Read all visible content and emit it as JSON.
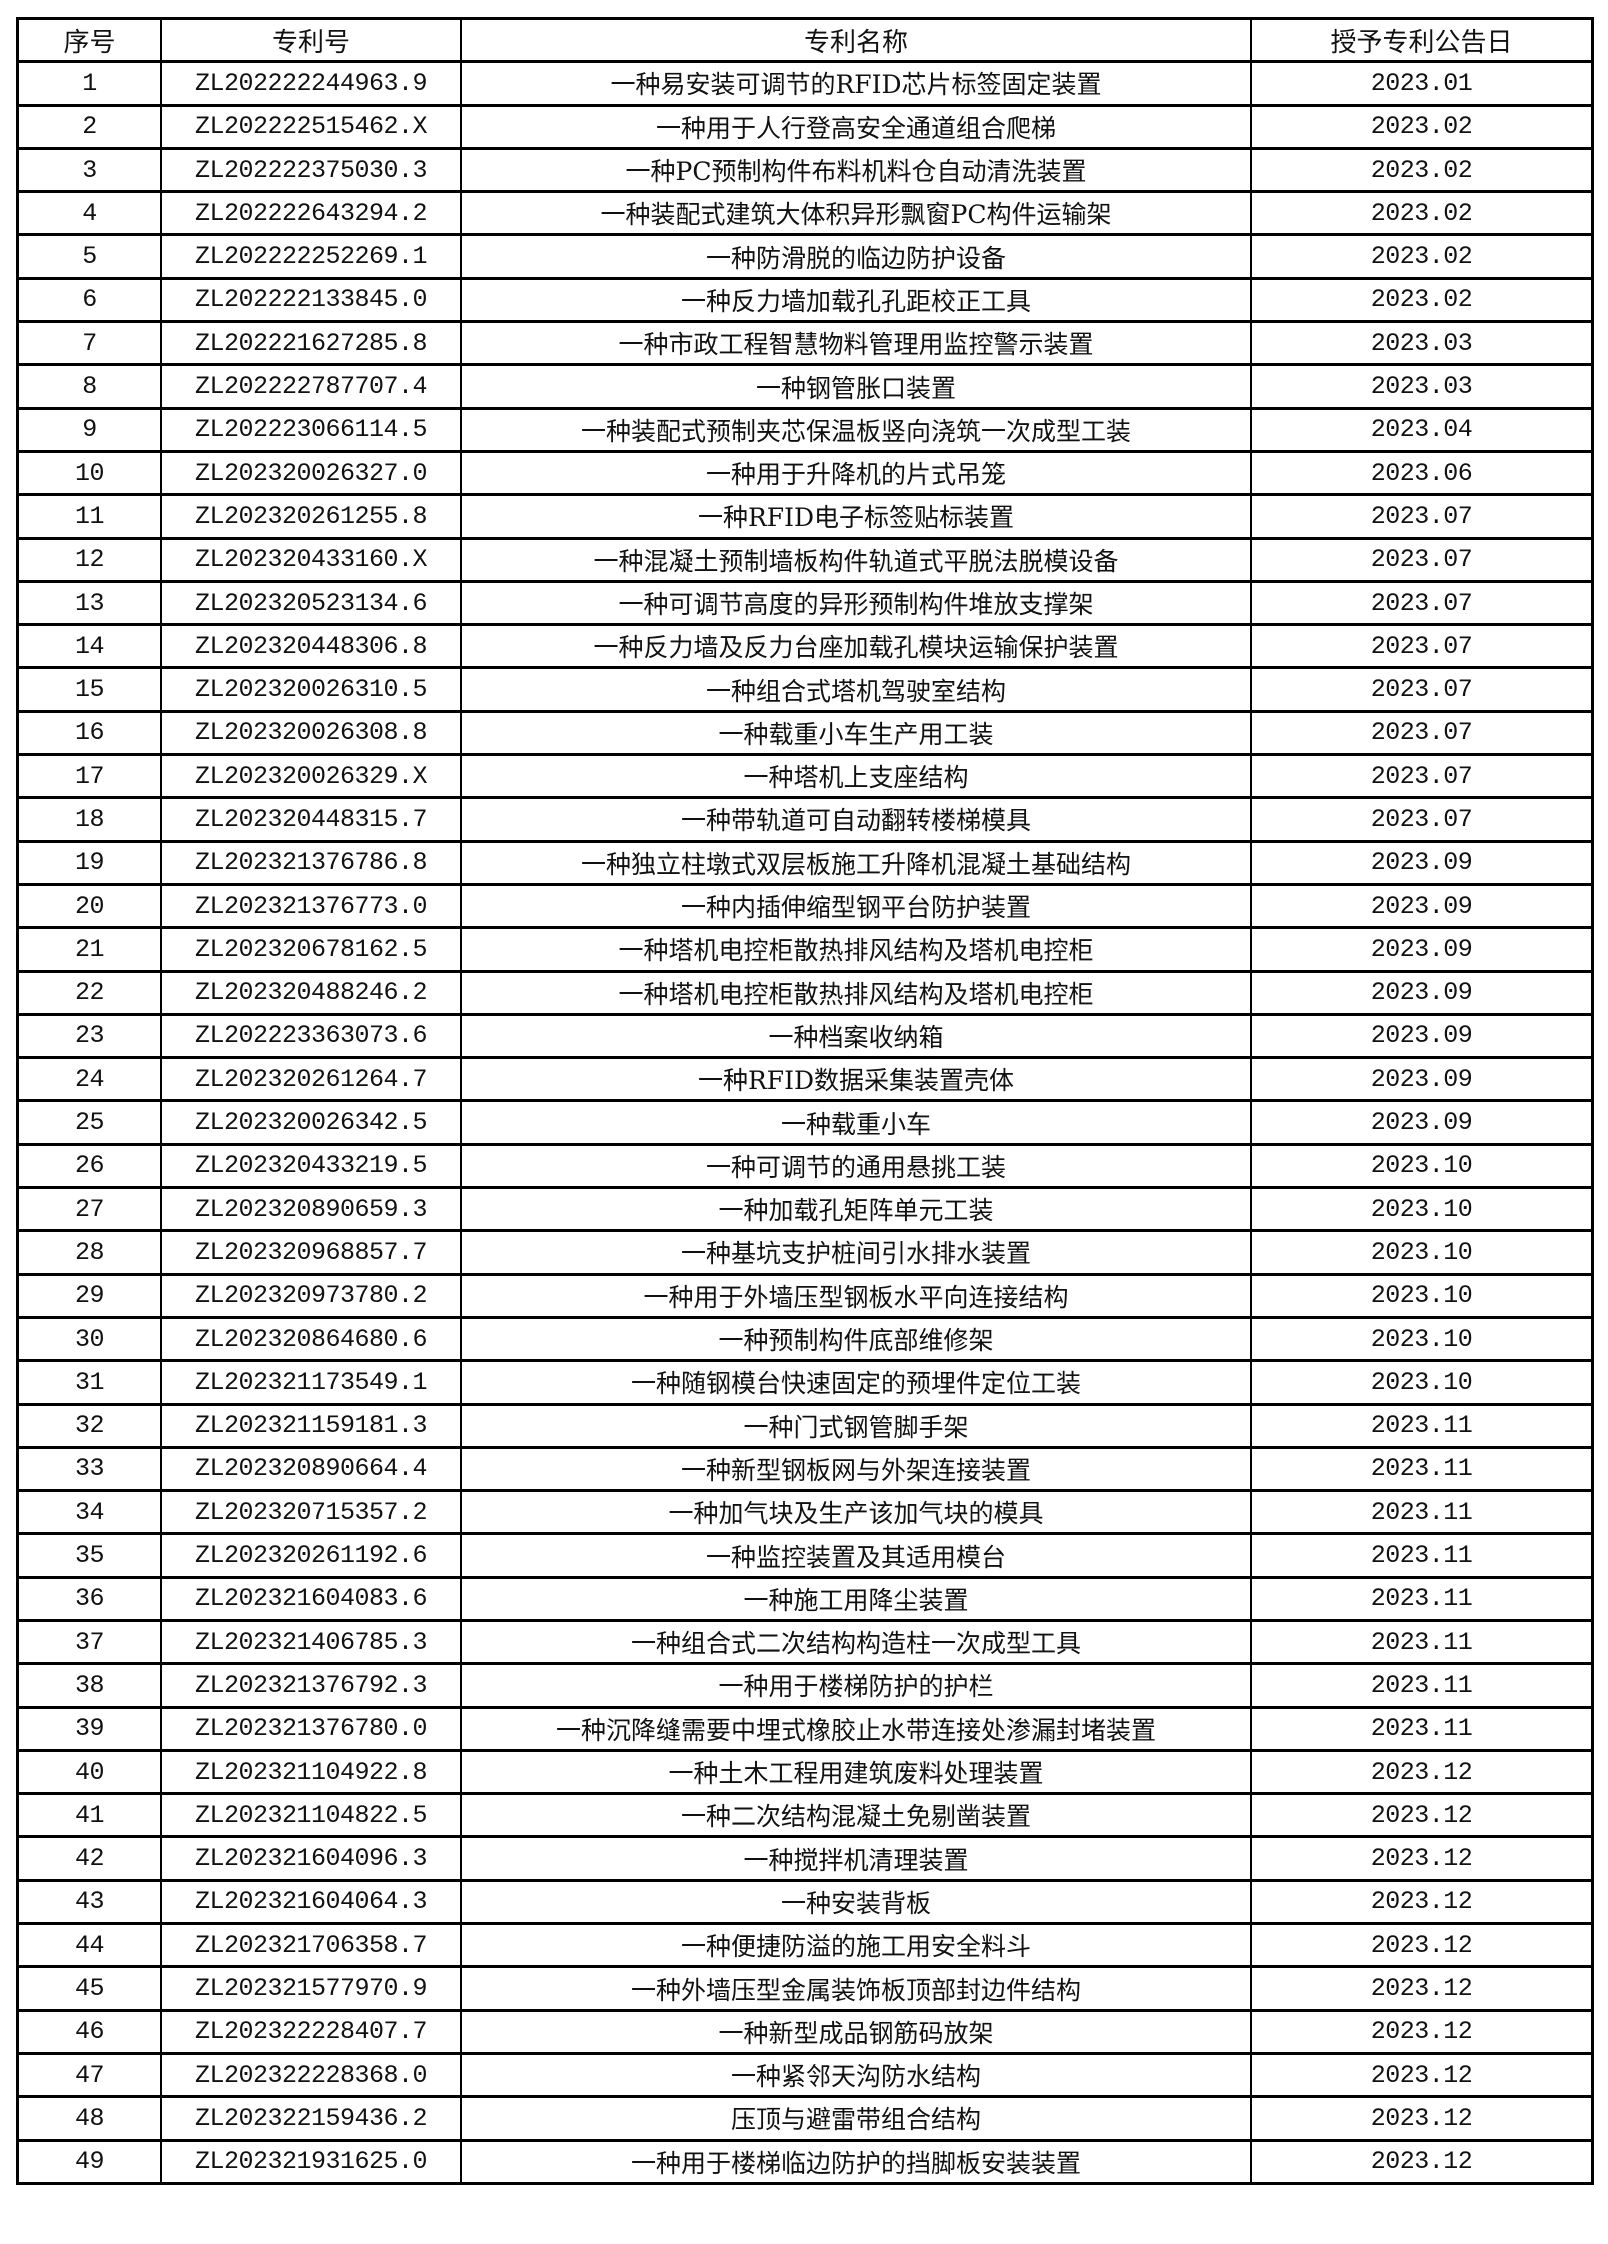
{
  "headers": [
    "序号",
    "专利号",
    "专利名称",
    "授予专利公告日"
  ],
  "rows": [
    [
      "1",
      "ZL202222244963.9",
      "一种易安装可调节的RFID芯片标签固定装置",
      "2023.01"
    ],
    [
      "2",
      "ZL202222515462.X",
      "一种用于人行登高安全通道组合爬梯",
      "2023.02"
    ],
    [
      "3",
      "ZL202222375030.3",
      "一种PC预制构件布料机料仓自动清洗装置",
      "2023.02"
    ],
    [
      "4",
      "ZL202222643294.2",
      "一种装配式建筑大体积异形飘窗PC构件运输架",
      "2023.02"
    ],
    [
      "5",
      "ZL202222252269.1",
      "一种防滑脱的临边防护设备",
      "2023.02"
    ],
    [
      "6",
      "ZL202222133845.0",
      "一种反力墙加载孔孔距校正工具",
      "2023.02"
    ],
    [
      "7",
      "ZL202221627285.8",
      "一种市政工程智慧物料管理用监控警示装置",
      "2023.03"
    ],
    [
      "8",
      "ZL202222787707.4",
      "一种钢管胀口装置",
      "2023.03"
    ],
    [
      "9",
      "ZL202223066114.5",
      "一种装配式预制夹芯保温板竖向浇筑一次成型工装",
      "2023.04"
    ],
    [
      "10",
      "ZL202320026327.0",
      "一种用于升降机的片式吊笼",
      "2023.06"
    ],
    [
      "11",
      "ZL202320261255.8",
      "一种RFID电子标签贴标装置",
      "2023.07"
    ],
    [
      "12",
      "ZL202320433160.X",
      "一种混凝土预制墙板构件轨道式平脱法脱模设备",
      "2023.07"
    ],
    [
      "13",
      "ZL202320523134.6",
      "一种可调节高度的异形预制构件堆放支撑架",
      "2023.07"
    ],
    [
      "14",
      "ZL202320448306.8",
      "一种反力墙及反力台座加载孔模块运输保护装置",
      "2023.07"
    ],
    [
      "15",
      "ZL202320026310.5",
      "一种组合式塔机驾驶室结构",
      "2023.07"
    ],
    [
      "16",
      "ZL202320026308.8",
      "一种载重小车生产用工装",
      "2023.07"
    ],
    [
      "17",
      "ZL202320026329.X",
      "一种塔机上支座结构",
      "2023.07"
    ],
    [
      "18",
      "ZL202320448315.7",
      "一种带轨道可自动翻转楼梯模具",
      "2023.07"
    ],
    [
      "19",
      "ZL202321376786.8",
      "一种独立柱墩式双层板施工升降机混凝土基础结构",
      "2023.09"
    ],
    [
      "20",
      "ZL202321376773.0",
      "一种内插伸缩型钢平台防护装置",
      "2023.09"
    ],
    [
      "21",
      "ZL202320678162.5",
      "一种塔机电控柜散热排风结构及塔机电控柜",
      "2023.09"
    ],
    [
      "22",
      "ZL202320488246.2",
      "一种塔机电控柜散热排风结构及塔机电控柜",
      "2023.09"
    ],
    [
      "23",
      "ZL202223363073.6",
      "一种档案收纳箱",
      "2023.09"
    ],
    [
      "24",
      "ZL202320261264.7",
      "一种RFID数据采集装置壳体",
      "2023.09"
    ],
    [
      "25",
      "ZL202320026342.5",
      "一种载重小车",
      "2023.09"
    ],
    [
      "26",
      "ZL202320433219.5",
      "一种可调节的通用悬挑工装",
      "2023.10"
    ],
    [
      "27",
      "ZL202320890659.3",
      "一种加载孔矩阵单元工装",
      "2023.10"
    ],
    [
      "28",
      "ZL202320968857.7",
      "一种基坑支护桩间引水排水装置",
      "2023.10"
    ],
    [
      "29",
      "ZL202320973780.2",
      "一种用于外墙压型钢板水平向连接结构",
      "2023.10"
    ],
    [
      "30",
      "ZL202320864680.6",
      "一种预制构件底部维修架",
      "2023.10"
    ],
    [
      "31",
      "ZL202321173549.1",
      "一种随钢模台快速固定的预埋件定位工装",
      "2023.10"
    ],
    [
      "32",
      "ZL202321159181.3",
      "一种门式钢管脚手架",
      "2023.11"
    ],
    [
      "33",
      "ZL202320890664.4",
      "一种新型钢板网与外架连接装置",
      "2023.11"
    ],
    [
      "34",
      "ZL202320715357.2",
      "一种加气块及生产该加气块的模具",
      "2023.11"
    ],
    [
      "35",
      "ZL202320261192.6",
      "一种监控装置及其适用模台",
      "2023.11"
    ],
    [
      "36",
      "ZL202321604083.6",
      "一种施工用降尘装置",
      "2023.11"
    ],
    [
      "37",
      "ZL202321406785.3",
      "一种组合式二次结构构造柱一次成型工具",
      "2023.11"
    ],
    [
      "38",
      "ZL202321376792.3",
      "一种用于楼梯防护的护栏",
      "2023.11"
    ],
    [
      "39",
      "ZL202321376780.0",
      "一种沉降缝需要中埋式橡胶止水带连接处渗漏封堵装置",
      "2023.11"
    ],
    [
      "40",
      "ZL202321104922.8",
      "一种土木工程用建筑废料处理装置",
      "2023.12"
    ],
    [
      "41",
      "ZL202321104822.5",
      "一种二次结构混凝土免剔凿装置",
      "2023.12"
    ],
    [
      "42",
      "ZL202321604096.3",
      "一种搅拌机清理装置",
      "2023.12"
    ],
    [
      "43",
      "ZL202321604064.3",
      "一种安装背板",
      "2023.12"
    ],
    [
      "44",
      "ZL202321706358.7",
      "一种便捷防溢的施工用安全料斗",
      "2023.12"
    ],
    [
      "45",
      "ZL202321577970.9",
      "一种外墙压型金属装饰板顶部封边件结构",
      "2023.12"
    ],
    [
      "46",
      "ZL202322228407.7",
      "一种新型成品钢筋码放架",
      "2023.12"
    ],
    [
      "47",
      "ZL202322228368.0",
      "一种紧邻天沟防水结构",
      "2023.12"
    ],
    [
      "48",
      "ZL202322159436.2",
      "压顶与避雷带组合结构",
      "2023.12"
    ],
    [
      "49",
      "ZL202321931625.0",
      "一种用于楼梯临边防护的挡脚板安装装置",
      "2023.12"
    ]
  ]
}
